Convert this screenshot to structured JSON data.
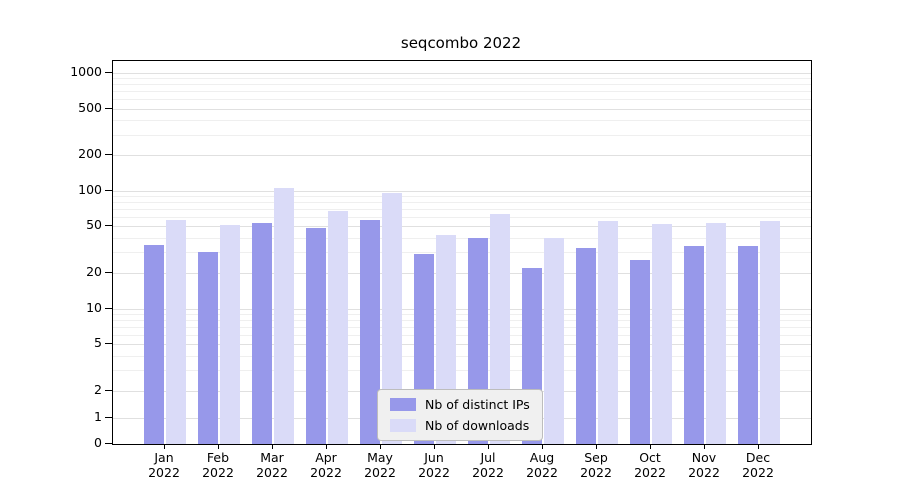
{
  "chart_data": {
    "type": "bar",
    "title": "seqcombo 2022",
    "categories": [
      "Jan\n2022",
      "Feb\n2022",
      "Mar\n2022",
      "Apr\n2022",
      "May\n2022",
      "Jun\n2022",
      "Jul\n2022",
      "Aug\n2022",
      "Sep\n2022",
      "Oct\n2022",
      "Nov\n2022",
      "Dec\n2022"
    ],
    "series": [
      {
        "name": "Nb of distinct IPs",
        "color": "#9798ea",
        "values": [
          35,
          30,
          53,
          48,
          57,
          29,
          40,
          22,
          33,
          26,
          34,
          34
        ]
      },
      {
        "name": "Nb of downloads",
        "color": "#dadbf8",
        "values": [
          57,
          51,
          105,
          68,
          95,
          42,
          64,
          40,
          56,
          52,
          53,
          55
        ]
      }
    ],
    "xlabel": "",
    "ylabel": "",
    "yscale": "symlog",
    "yticks": [
      0,
      1,
      2,
      5,
      10,
      20,
      50,
      100,
      200,
      500,
      1000
    ],
    "ylim": [
      0,
      1300
    ],
    "grid": "horizontal light-gray lines at major and minor log ticks",
    "legend_position": "lower center"
  }
}
